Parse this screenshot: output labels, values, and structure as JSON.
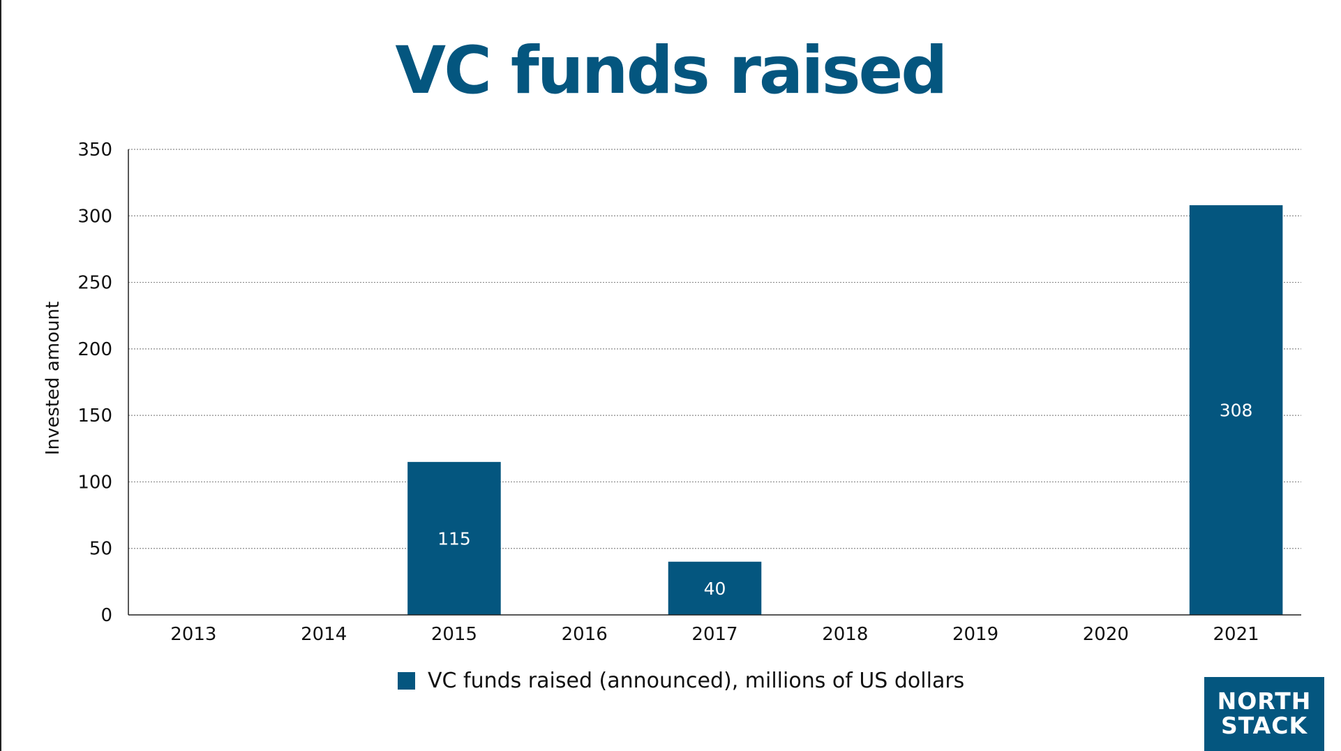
{
  "colors": {
    "accent": "#04567f",
    "logo_bg": "#04567f",
    "grid": "#8a8a8a",
    "text": "#111111"
  },
  "chart_data": {
    "type": "bar",
    "title": "VC funds raised",
    "xlabel": "",
    "ylabel": "Invested amount",
    "categories": [
      "2013",
      "2014",
      "2015",
      "2016",
      "2017",
      "2018",
      "2019",
      "2020",
      "2021"
    ],
    "series": [
      {
        "name": "VC funds raised (announced), millions of US dollars",
        "values": [
          null,
          null,
          115,
          null,
          40,
          null,
          null,
          null,
          308
        ],
        "data_labels": [
          "",
          "",
          "115",
          "",
          "40",
          "",
          "",
          "",
          "308"
        ],
        "color": "#04567f"
      }
    ],
    "ylim": [
      0,
      350
    ],
    "yticks": [
      0,
      50,
      100,
      150,
      200,
      250,
      300,
      350
    ],
    "grid": true,
    "grid_style": "dotted",
    "legend_position": "bottom"
  },
  "logo": {
    "line1": "NORTH",
    "line2": "STACK",
    "icon": "power-arrow-icon"
  }
}
